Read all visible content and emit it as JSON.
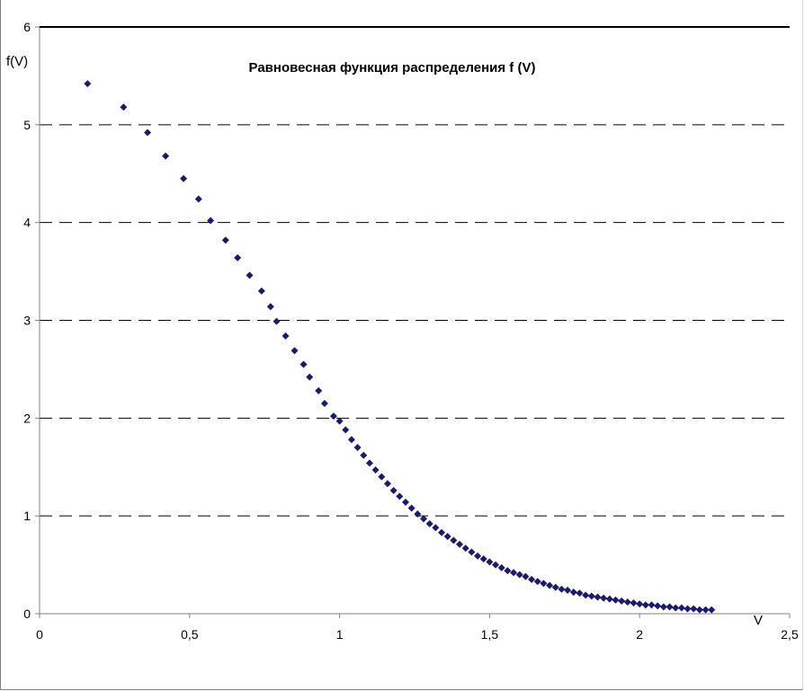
{
  "chart_data": {
    "type": "scatter",
    "title": "Равновесная функция распределения f (V)",
    "xlabel": "V",
    "ylabel": "f(V)",
    "xlim": [
      0,
      2.5
    ],
    "ylim": [
      0,
      6
    ],
    "x_ticks": [
      "0",
      "0,5",
      "1",
      "1,5",
      "2",
      "2,5"
    ],
    "y_ticks": [
      "0",
      "1",
      "2",
      "3",
      "4",
      "5",
      "6"
    ],
    "grid": "horizontal-dashed",
    "marker": "diamond",
    "marker_color": "#1a1a6e",
    "series": [
      {
        "x": [
          0.16,
          0.28,
          0.36,
          0.42,
          0.48,
          0.53,
          0.57,
          0.62,
          0.66,
          0.7,
          0.74,
          0.77,
          0.79,
          0.82,
          0.85,
          0.88,
          0.9,
          0.93,
          0.95,
          0.98,
          1.0,
          1.02,
          1.04,
          1.06,
          1.08,
          1.1,
          1.12,
          1.14,
          1.16,
          1.18,
          1.2,
          1.22,
          1.24,
          1.26,
          1.28,
          1.3,
          1.32,
          1.34,
          1.36,
          1.38,
          1.4,
          1.42,
          1.44,
          1.46,
          1.48,
          1.5,
          1.52,
          1.54,
          1.56,
          1.58,
          1.6,
          1.62,
          1.64,
          1.66,
          1.68,
          1.7,
          1.72,
          1.74,
          1.76,
          1.78,
          1.8,
          1.82,
          1.84,
          1.86,
          1.88,
          1.9,
          1.92,
          1.94,
          1.96,
          1.98,
          2.0,
          2.02,
          2.04,
          2.06,
          2.08,
          2.1,
          2.12,
          2.14,
          2.16,
          2.18,
          2.2,
          2.22,
          2.24
        ],
        "y": [
          5.42,
          5.18,
          4.92,
          4.68,
          4.45,
          4.24,
          4.02,
          3.82,
          3.64,
          3.46,
          3.3,
          3.14,
          2.99,
          2.84,
          2.69,
          2.55,
          2.42,
          2.28,
          2.15,
          2.02,
          1.97,
          1.88,
          1.78,
          1.7,
          1.62,
          1.54,
          1.47,
          1.4,
          1.33,
          1.26,
          1.2,
          1.14,
          1.08,
          1.02,
          0.97,
          0.92,
          0.88,
          0.83,
          0.79,
          0.75,
          0.71,
          0.67,
          0.63,
          0.59,
          0.56,
          0.53,
          0.5,
          0.47,
          0.44,
          0.42,
          0.4,
          0.38,
          0.35,
          0.33,
          0.31,
          0.29,
          0.27,
          0.25,
          0.24,
          0.22,
          0.21,
          0.19,
          0.18,
          0.17,
          0.16,
          0.15,
          0.14,
          0.13,
          0.12,
          0.11,
          0.1,
          0.09,
          0.09,
          0.08,
          0.07,
          0.07,
          0.06,
          0.06,
          0.05,
          0.05,
          0.04,
          0.04,
          0.04
        ]
      }
    ]
  }
}
